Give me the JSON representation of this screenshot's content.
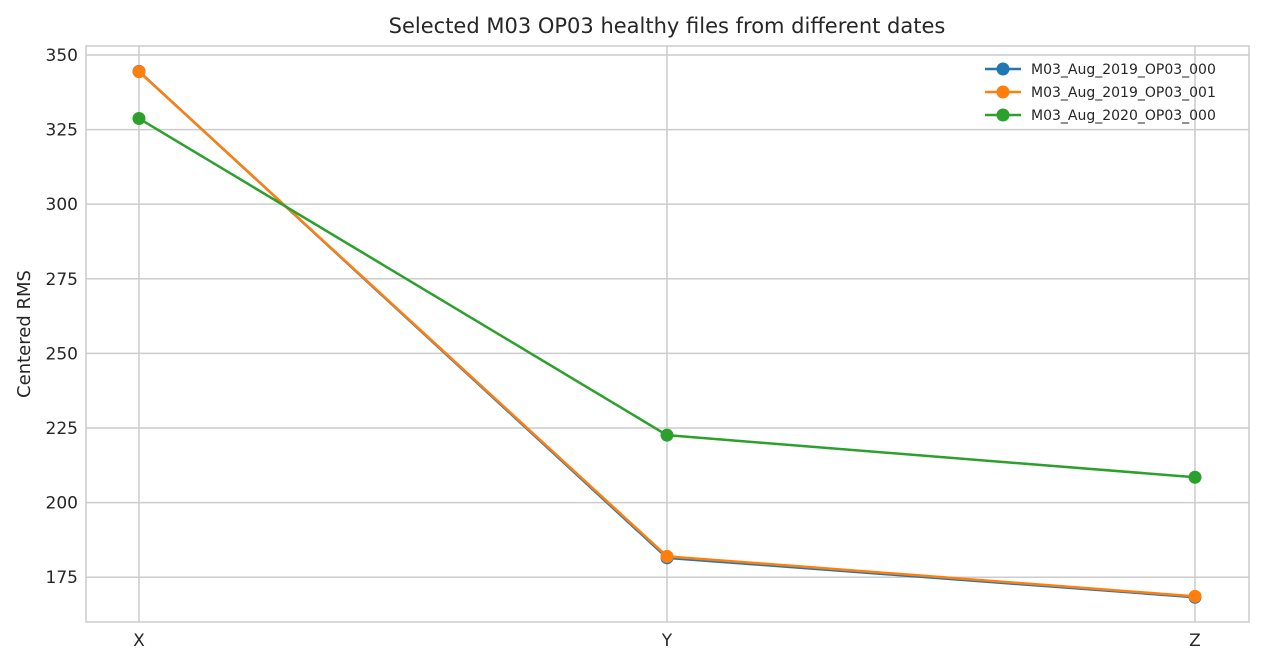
{
  "chart_data": {
    "type": "line",
    "title": "Selected M03 OP03 healthy files from different dates",
    "xlabel": "",
    "ylabel": "Centered RMS",
    "categories": [
      "X",
      "Y",
      "Z"
    ],
    "ylim": [
      160,
      353
    ],
    "yticks": [
      175,
      200,
      225,
      250,
      275,
      300,
      325,
      350
    ],
    "grid": true,
    "legend_position": "top-right",
    "series": [
      {
        "name": "M03_Aug_2019_OP03_000",
        "color": "#1f77b4",
        "values": [
          344.5,
          181.5,
          168.3
        ]
      },
      {
        "name": "M03_Aug_2019_OP03_001",
        "color": "#ff7f0e",
        "values": [
          344.4,
          182.0,
          168.6
        ]
      },
      {
        "name": "M03_Aug_2020_OP03_000",
        "color": "#2ca02c",
        "values": [
          328.7,
          222.6,
          208.5
        ]
      }
    ]
  }
}
